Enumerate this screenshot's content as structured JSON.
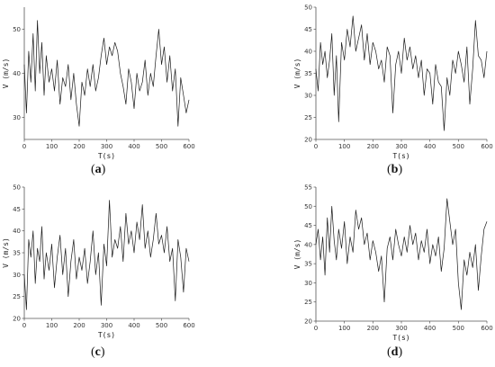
{
  "chart_data": [
    {
      "type": "line",
      "caption": "a",
      "xlabel": "T(s)",
      "ylabel": "V (m/s)",
      "xlim": [
        0,
        600
      ],
      "ylim": [
        25,
        55
      ],
      "xticks": [
        0,
        100,
        200,
        300,
        400,
        500,
        600
      ],
      "yticks": [
        30,
        40,
        50
      ],
      "series": [
        {
          "x": [
            0,
            8,
            16,
            24,
            32,
            40,
            48,
            56,
            64,
            72,
            80,
            90,
            100,
            110,
            120,
            130,
            140,
            150,
            160,
            170,
            180,
            190,
            200,
            210,
            220,
            230,
            240,
            250,
            260,
            270,
            280,
            290,
            300,
            310,
            320,
            330,
            340,
            350,
            360,
            370,
            380,
            390,
            400,
            410,
            420,
            430,
            440,
            450,
            460,
            470,
            480,
            490,
            500,
            510,
            520,
            530,
            540,
            550,
            560,
            570,
            580,
            590,
            600
          ],
          "y": [
            42,
            31,
            45,
            38,
            49,
            36,
            52,
            40,
            47,
            35,
            44,
            38,
            41,
            36,
            43,
            33,
            39,
            37,
            42,
            34,
            40,
            33,
            28,
            38,
            35,
            41,
            37,
            42,
            36,
            39,
            44,
            48,
            42,
            46,
            44,
            47,
            45,
            40,
            37,
            33,
            41,
            38,
            32,
            40,
            36,
            38,
            43,
            35,
            40,
            37,
            44,
            50,
            42,
            46,
            38,
            44,
            36,
            41,
            28,
            39,
            35,
            31,
            34
          ]
        }
      ]
    },
    {
      "type": "line",
      "caption": "b",
      "xlabel": "T(s)",
      "ylabel": "V (m/s)",
      "xlim": [
        0,
        600
      ],
      "ylim": [
        20,
        50
      ],
      "xticks": [
        0,
        100,
        200,
        300,
        400,
        500,
        600
      ],
      "yticks": [
        20,
        25,
        30,
        35,
        40,
        45,
        50
      ],
      "series": [
        {
          "x": [
            0,
            8,
            16,
            24,
            32,
            40,
            48,
            56,
            64,
            72,
            80,
            90,
            100,
            110,
            120,
            130,
            140,
            150,
            160,
            170,
            180,
            190,
            200,
            210,
            220,
            230,
            240,
            250,
            260,
            270,
            280,
            290,
            300,
            310,
            320,
            330,
            340,
            350,
            360,
            370,
            380,
            390,
            400,
            410,
            420,
            430,
            440,
            450,
            460,
            470,
            480,
            490,
            500,
            510,
            520,
            530,
            540,
            550,
            560,
            570,
            580,
            590,
            600
          ],
          "y": [
            36,
            31,
            42,
            37,
            40,
            34,
            38,
            44,
            30,
            39,
            24,
            42,
            38,
            45,
            41,
            48,
            40,
            43,
            46,
            38,
            44,
            37,
            42,
            40,
            36,
            38,
            33,
            41,
            39,
            26,
            37,
            40,
            35,
            43,
            38,
            41,
            36,
            39,
            34,
            38,
            30,
            36,
            35,
            28,
            37,
            33,
            32,
            22,
            34,
            30,
            38,
            35,
            40,
            37,
            33,
            41,
            28,
            36,
            47,
            39,
            38,
            34,
            40
          ]
        }
      ]
    },
    {
      "type": "line",
      "caption": "c",
      "xlabel": "T(s)",
      "ylabel": "V (m/s)",
      "xlim": [
        0,
        600
      ],
      "ylim": [
        20,
        50
      ],
      "xticks": [
        0,
        100,
        200,
        300,
        400,
        500,
        600
      ],
      "yticks": [
        20,
        25,
        30,
        35,
        40,
        45,
        50
      ],
      "series": [
        {
          "x": [
            0,
            8,
            16,
            24,
            32,
            40,
            48,
            56,
            64,
            72,
            80,
            90,
            100,
            110,
            120,
            130,
            140,
            150,
            160,
            170,
            180,
            190,
            200,
            210,
            220,
            230,
            240,
            250,
            260,
            270,
            280,
            290,
            300,
            310,
            320,
            330,
            340,
            350,
            360,
            370,
            380,
            390,
            400,
            410,
            420,
            430,
            440,
            450,
            460,
            470,
            480,
            490,
            500,
            510,
            520,
            530,
            540,
            550,
            560,
            570,
            580,
            590,
            600
          ],
          "y": [
            30,
            22,
            38,
            34,
            40,
            28,
            36,
            33,
            41,
            29,
            35,
            31,
            37,
            27,
            34,
            39,
            30,
            36,
            25,
            33,
            38,
            29,
            34,
            31,
            36,
            28,
            33,
            40,
            30,
            35,
            23,
            37,
            32,
            47,
            34,
            38,
            36,
            41,
            33,
            44,
            37,
            40,
            35,
            42,
            38,
            46,
            36,
            40,
            34,
            38,
            44,
            37,
            39,
            35,
            41,
            33,
            36,
            24,
            38,
            34,
            26,
            36,
            33
          ]
        }
      ]
    },
    {
      "type": "line",
      "caption": "d",
      "xlabel": "T(s)",
      "ylabel": "V (m/s)",
      "xlim": [
        0,
        600
      ],
      "ylim": [
        20,
        55
      ],
      "xticks": [
        0,
        100,
        200,
        300,
        400,
        500,
        600
      ],
      "yticks": [
        20,
        25,
        30,
        35,
        40,
        45,
        50,
        55
      ],
      "series": [
        {
          "x": [
            0,
            8,
            16,
            24,
            32,
            40,
            48,
            56,
            64,
            72,
            80,
            90,
            100,
            110,
            120,
            130,
            140,
            150,
            160,
            170,
            180,
            190,
            200,
            210,
            220,
            230,
            240,
            250,
            260,
            270,
            280,
            290,
            300,
            310,
            320,
            330,
            340,
            350,
            360,
            370,
            380,
            390,
            400,
            410,
            420,
            430,
            440,
            450,
            460,
            470,
            480,
            490,
            500,
            510,
            520,
            530,
            540,
            550,
            560,
            570,
            580,
            590,
            600
          ],
          "y": [
            40,
            44,
            36,
            42,
            32,
            47,
            38,
            50,
            41,
            36,
            44,
            39,
            46,
            35,
            42,
            38,
            49,
            44,
            47,
            40,
            43,
            36,
            41,
            38,
            33,
            37,
            25,
            39,
            42,
            36,
            44,
            40,
            37,
            42,
            38,
            45,
            40,
            43,
            36,
            41,
            38,
            44,
            35,
            40,
            37,
            42,
            33,
            39,
            52,
            46,
            40,
            44,
            30,
            23,
            36,
            32,
            38,
            34,
            40,
            28,
            37,
            44,
            46
          ]
        }
      ]
    }
  ]
}
